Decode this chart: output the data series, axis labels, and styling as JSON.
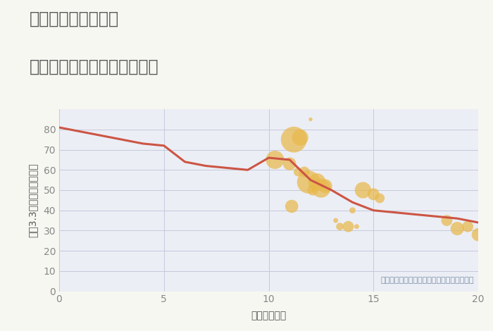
{
  "title_line1": "千葉県富里市中沢の",
  "title_line2": "駅距離別中古マンション価格",
  "xlabel": "駅距離（分）",
  "ylabel": "坪（3.3㎡）単価（万円）",
  "background_color": "#f7f7f2",
  "plot_bg_color": "#eceef5",
  "line_color": "#cc5544",
  "line_x": [
    0,
    1,
    2,
    3,
    4,
    5,
    6,
    7,
    8,
    9,
    10,
    11,
    12,
    13,
    14,
    15,
    16,
    17,
    18,
    19,
    20
  ],
  "line_y": [
    81,
    79,
    77,
    75,
    73,
    72,
    64,
    62,
    61,
    60,
    66,
    65,
    55,
    50,
    44,
    40,
    39,
    38,
    37,
    36,
    34
  ],
  "scatter_x": [
    10.3,
    11.2,
    11.5,
    11.0,
    11.7,
    11.9,
    12.3,
    12.1,
    12.5,
    11.1,
    11.4,
    12.7,
    13.2,
    13.4,
    14.0,
    14.5,
    15.0,
    15.3,
    18.5,
    19.0,
    19.5,
    20.0,
    12.0,
    13.8,
    14.2
  ],
  "scatter_y": [
    65,
    75,
    76,
    63,
    59,
    54,
    54,
    50,
    51,
    42,
    59,
    52,
    35,
    32,
    40,
    50,
    48,
    46,
    35,
    31,
    32,
    28,
    85,
    32,
    32
  ],
  "scatter_sizes": [
    350,
    700,
    280,
    180,
    120,
    550,
    320,
    120,
    380,
    180,
    80,
    200,
    25,
    60,
    40,
    280,
    150,
    100,
    130,
    190,
    130,
    180,
    15,
    130,
    25
  ],
  "scatter_color": "#e8b84b",
  "scatter_alpha": 0.72,
  "annotation": "円の大きさは、取引のあった物件面積を示す",
  "annotation_color": "#7a8fa6",
  "xlim": [
    0,
    20
  ],
  "ylim": [
    0,
    90
  ],
  "xticks": [
    0,
    5,
    10,
    15,
    20
  ],
  "yticks": [
    0,
    10,
    20,
    30,
    40,
    50,
    60,
    70,
    80
  ],
  "grid_color": "#c5c9dc",
  "title_color": "#555555",
  "tick_color": "#888888",
  "title_fontsize": 17,
  "axis_label_fontsize": 10,
  "tick_fontsize": 10
}
